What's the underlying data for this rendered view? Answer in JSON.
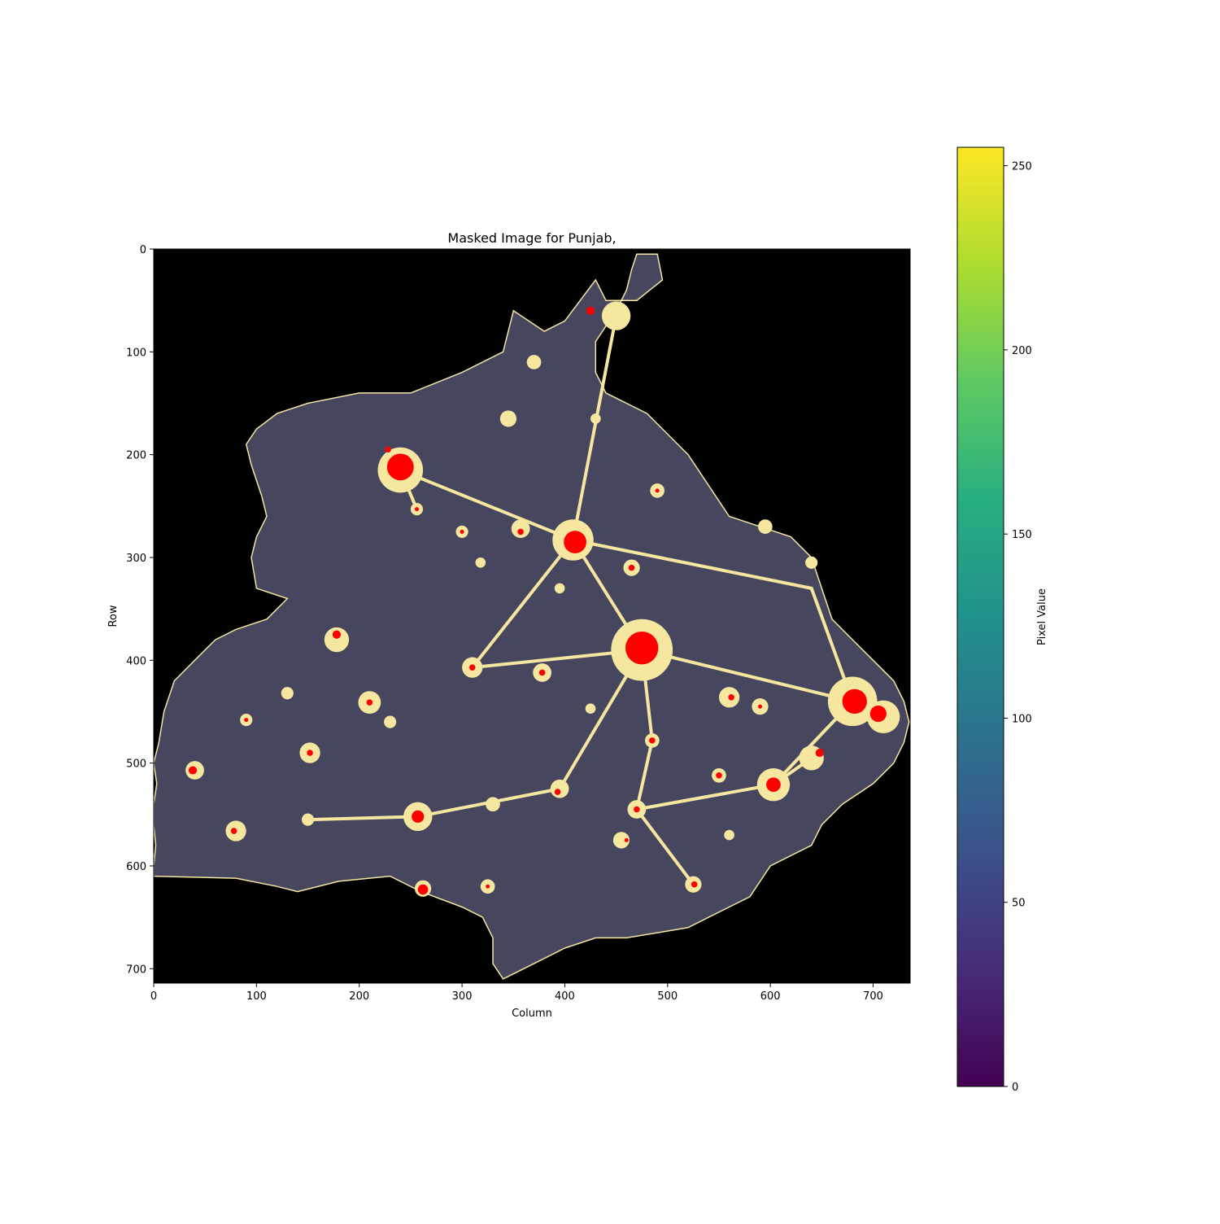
{
  "chart_data": {
    "type": "heatmap",
    "title": "Masked Image for Punjab,",
    "xlabel": "Column",
    "ylabel": "Row",
    "xlim": [
      0,
      736
    ],
    "ylim": [
      714,
      0
    ],
    "x_ticks": [
      0,
      100,
      200,
      300,
      400,
      500,
      600,
      700
    ],
    "y_ticks": [
      0,
      100,
      200,
      300,
      400,
      500,
      600,
      700
    ],
    "grid": false,
    "colormap": "viridis",
    "colorbar": {
      "label": "Pixel Value",
      "range": [
        0,
        255
      ],
      "ticks": [
        0,
        50,
        100,
        150,
        200,
        250
      ]
    },
    "colors": {
      "background": "#000000",
      "region": "#46465e",
      "lit": "#f5e7a0",
      "bright": "#ff0000"
    },
    "region_outline": [
      [
        470,
        5
      ],
      [
        490,
        5
      ],
      [
        495,
        30
      ],
      [
        470,
        50
      ],
      [
        440,
        50
      ],
      [
        430,
        30
      ],
      [
        400,
        70
      ],
      [
        380,
        80
      ],
      [
        350,
        60
      ],
      [
        340,
        100
      ],
      [
        300,
        120
      ],
      [
        250,
        140
      ],
      [
        200,
        140
      ],
      [
        150,
        150
      ],
      [
        120,
        160
      ],
      [
        100,
        175
      ],
      [
        90,
        190
      ],
      [
        95,
        210
      ],
      [
        105,
        240
      ],
      [
        110,
        260
      ],
      [
        100,
        280
      ],
      [
        95,
        300
      ],
      [
        100,
        330
      ],
      [
        130,
        340
      ],
      [
        110,
        360
      ],
      [
        80,
        370
      ],
      [
        60,
        380
      ],
      [
        40,
        400
      ],
      [
        20,
        420
      ],
      [
        10,
        450
      ],
      [
        5,
        480
      ],
      [
        0,
        500
      ],
      [
        3,
        520
      ],
      [
        0,
        540
      ],
      [
        0,
        560
      ],
      [
        2,
        580
      ],
      [
        0,
        600
      ],
      [
        0,
        610
      ],
      [
        80,
        612
      ],
      [
        120,
        620
      ],
      [
        140,
        625
      ],
      [
        180,
        615
      ],
      [
        230,
        610
      ],
      [
        260,
        625
      ],
      [
        300,
        640
      ],
      [
        320,
        650
      ],
      [
        330,
        670
      ],
      [
        330,
        695
      ],
      [
        340,
        710
      ],
      [
        360,
        700
      ],
      [
        380,
        690
      ],
      [
        400,
        680
      ],
      [
        430,
        670
      ],
      [
        460,
        670
      ],
      [
        490,
        665
      ],
      [
        520,
        660
      ],
      [
        540,
        650
      ],
      [
        560,
        640
      ],
      [
        580,
        630
      ],
      [
        600,
        600
      ],
      [
        640,
        580
      ],
      [
        650,
        560
      ],
      [
        670,
        540
      ],
      [
        700,
        520
      ],
      [
        720,
        500
      ],
      [
        730,
        480
      ],
      [
        735,
        460
      ],
      [
        730,
        440
      ],
      [
        720,
        420
      ],
      [
        700,
        400
      ],
      [
        680,
        380
      ],
      [
        660,
        360
      ],
      [
        650,
        330
      ],
      [
        640,
        300
      ],
      [
        620,
        280
      ],
      [
        590,
        270
      ],
      [
        560,
        260
      ],
      [
        540,
        230
      ],
      [
        520,
        200
      ],
      [
        500,
        180
      ],
      [
        480,
        160
      ],
      [
        460,
        150
      ],
      [
        440,
        140
      ],
      [
        430,
        120
      ],
      [
        430,
        90
      ],
      [
        450,
        60
      ],
      [
        460,
        40
      ],
      [
        465,
        20
      ]
    ],
    "lit_areas": [
      {
        "x": 240,
        "y": 215,
        "r": 22
      },
      {
        "x": 408,
        "y": 283,
        "r": 20
      },
      {
        "x": 475,
        "y": 390,
        "r": 30
      },
      {
        "x": 680,
        "y": 440,
        "r": 24
      },
      {
        "x": 710,
        "y": 455,
        "r": 16
      },
      {
        "x": 603,
        "y": 521,
        "r": 16
      },
      {
        "x": 257,
        "y": 552,
        "r": 14
      },
      {
        "x": 178,
        "y": 380,
        "r": 12
      },
      {
        "x": 40,
        "y": 507,
        "r": 9
      },
      {
        "x": 80,
        "y": 566,
        "r": 10
      },
      {
        "x": 152,
        "y": 490,
        "r": 10
      },
      {
        "x": 210,
        "y": 441,
        "r": 11
      },
      {
        "x": 310,
        "y": 407,
        "r": 10
      },
      {
        "x": 378,
        "y": 412,
        "r": 9
      },
      {
        "x": 450,
        "y": 65,
        "r": 14
      },
      {
        "x": 465,
        "y": 310,
        "r": 8
      },
      {
        "x": 485,
        "y": 478,
        "r": 7
      },
      {
        "x": 470,
        "y": 545,
        "r": 9
      },
      {
        "x": 395,
        "y": 525,
        "r": 9
      },
      {
        "x": 640,
        "y": 495,
        "r": 12
      },
      {
        "x": 550,
        "y": 512,
        "r": 7
      },
      {
        "x": 525,
        "y": 618,
        "r": 8
      },
      {
        "x": 325,
        "y": 620,
        "r": 7
      },
      {
        "x": 262,
        "y": 622,
        "r": 8
      },
      {
        "x": 560,
        "y": 436,
        "r": 10
      },
      {
        "x": 590,
        "y": 445,
        "r": 8
      },
      {
        "x": 330,
        "y": 540,
        "r": 7
      },
      {
        "x": 455,
        "y": 575,
        "r": 8
      },
      {
        "x": 150,
        "y": 555,
        "r": 6
      },
      {
        "x": 130,
        "y": 432,
        "r": 6
      },
      {
        "x": 595,
        "y": 270,
        "r": 7
      },
      {
        "x": 640,
        "y": 305,
        "r": 6
      },
      {
        "x": 490,
        "y": 235,
        "r": 7
      },
      {
        "x": 345,
        "y": 165,
        "r": 8
      },
      {
        "x": 370,
        "y": 110,
        "r": 7
      },
      {
        "x": 430,
        "y": 165,
        "r": 5
      },
      {
        "x": 357,
        "y": 272,
        "r": 9
      },
      {
        "x": 318,
        "y": 305,
        "r": 5
      },
      {
        "x": 300,
        "y": 275,
        "r": 6
      },
      {
        "x": 256,
        "y": 253,
        "r": 6
      },
      {
        "x": 90,
        "y": 458,
        "r": 6
      },
      {
        "x": 230,
        "y": 460,
        "r": 6
      },
      {
        "x": 425,
        "y": 447,
        "r": 5
      },
      {
        "x": 395,
        "y": 330,
        "r": 5
      },
      {
        "x": 560,
        "y": 570,
        "r": 5
      }
    ],
    "bright_areas": [
      {
        "x": 240,
        "y": 212,
        "r": 13
      },
      {
        "x": 410,
        "y": 285,
        "r": 11
      },
      {
        "x": 475,
        "y": 388,
        "r": 16
      },
      {
        "x": 682,
        "y": 440,
        "r": 12
      },
      {
        "x": 705,
        "y": 452,
        "r": 8
      },
      {
        "x": 603,
        "y": 521,
        "r": 7
      },
      {
        "x": 257,
        "y": 552,
        "r": 6
      },
      {
        "x": 178,
        "y": 375,
        "r": 4
      },
      {
        "x": 38,
        "y": 507,
        "r": 4
      },
      {
        "x": 78,
        "y": 566,
        "r": 3
      },
      {
        "x": 152,
        "y": 490,
        "r": 3
      },
      {
        "x": 210,
        "y": 441,
        "r": 3
      },
      {
        "x": 310,
        "y": 407,
        "r": 3
      },
      {
        "x": 378,
        "y": 412,
        "r": 3
      },
      {
        "x": 425,
        "y": 60,
        "r": 4
      },
      {
        "x": 465,
        "y": 310,
        "r": 3
      },
      {
        "x": 485,
        "y": 478,
        "r": 3
      },
      {
        "x": 470,
        "y": 545,
        "r": 3
      },
      {
        "x": 393,
        "y": 528,
        "r": 3
      },
      {
        "x": 648,
        "y": 490,
        "r": 4
      },
      {
        "x": 550,
        "y": 512,
        "r": 3
      },
      {
        "x": 526,
        "y": 618,
        "r": 3
      },
      {
        "x": 325,
        "y": 620,
        "r": 2
      },
      {
        "x": 262,
        "y": 623,
        "r": 5
      },
      {
        "x": 562,
        "y": 436,
        "r": 3
      },
      {
        "x": 590,
        "y": 445,
        "r": 2
      },
      {
        "x": 460,
        "y": 575,
        "r": 2
      },
      {
        "x": 228,
        "y": 195,
        "r": 3
      },
      {
        "x": 357,
        "y": 275,
        "r": 3
      },
      {
        "x": 300,
        "y": 275,
        "r": 2
      },
      {
        "x": 256,
        "y": 253,
        "r": 2
      },
      {
        "x": 90,
        "y": 458,
        "r": 2
      },
      {
        "x": 490,
        "y": 235,
        "r": 2
      }
    ],
    "roads": [
      [
        [
          408,
          283
        ],
        [
          475,
          390
        ]
      ],
      [
        [
          475,
          390
        ],
        [
          680,
          440
        ]
      ],
      [
        [
          408,
          283
        ],
        [
          640,
          330
        ]
      ],
      [
        [
          640,
          330
        ],
        [
          680,
          440
        ]
      ],
      [
        [
          240,
          215
        ],
        [
          408,
          283
        ]
      ],
      [
        [
          408,
          283
        ],
        [
          310,
          407
        ]
      ],
      [
        [
          475,
          390
        ],
        [
          485,
          478
        ]
      ],
      [
        [
          485,
          478
        ],
        [
          470,
          545
        ]
      ],
      [
        [
          475,
          390
        ],
        [
          395,
          525
        ]
      ],
      [
        [
          680,
          440
        ],
        [
          603,
          521
        ]
      ],
      [
        [
          603,
          521
        ],
        [
          470,
          545
        ]
      ],
      [
        [
          257,
          552
        ],
        [
          395,
          525
        ]
      ],
      [
        [
          257,
          552
        ],
        [
          152,
          555
        ]
      ],
      [
        [
          470,
          545
        ],
        [
          525,
          618
        ]
      ],
      [
        [
          408,
          283
        ],
        [
          450,
          65
        ]
      ],
      [
        [
          475,
          390
        ],
        [
          310,
          407
        ]
      ],
      [
        [
          603,
          521
        ],
        [
          640,
          495
        ]
      ],
      [
        [
          240,
          215
        ],
        [
          256,
          253
        ]
      ]
    ]
  }
}
